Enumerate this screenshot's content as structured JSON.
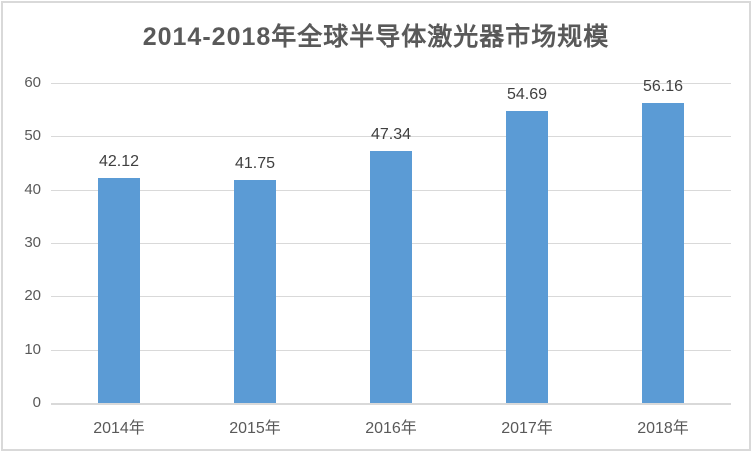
{
  "chart_data": {
    "type": "bar",
    "title": "2014-2018年全球半导体激光器市场规模",
    "categories": [
      "2014年",
      "2015年",
      "2016年",
      "2017年",
      "2018年"
    ],
    "values": [
      42.12,
      41.75,
      47.34,
      54.69,
      56.16
    ],
    "data_labels": [
      "42.12",
      "41.75",
      "47.34",
      "54.69",
      "56.16"
    ],
    "xlabel": "",
    "ylabel": "",
    "ylim": [
      0,
      60
    ],
    "ytick_interval": 10,
    "ytick_labels": [
      "0",
      "10",
      "20",
      "30",
      "40",
      "50",
      "60"
    ],
    "grid": true,
    "legend_position": "none",
    "colors": {
      "bar": "#5B9BD5",
      "gridline": "#D9D9D9",
      "axis_line": "#D9D9D9",
      "axis_text": "#595959",
      "data_label_text": "#404040",
      "title_text": "#595959",
      "frame_border": "#D9D9D9",
      "background": "#FFFFFF"
    }
  }
}
